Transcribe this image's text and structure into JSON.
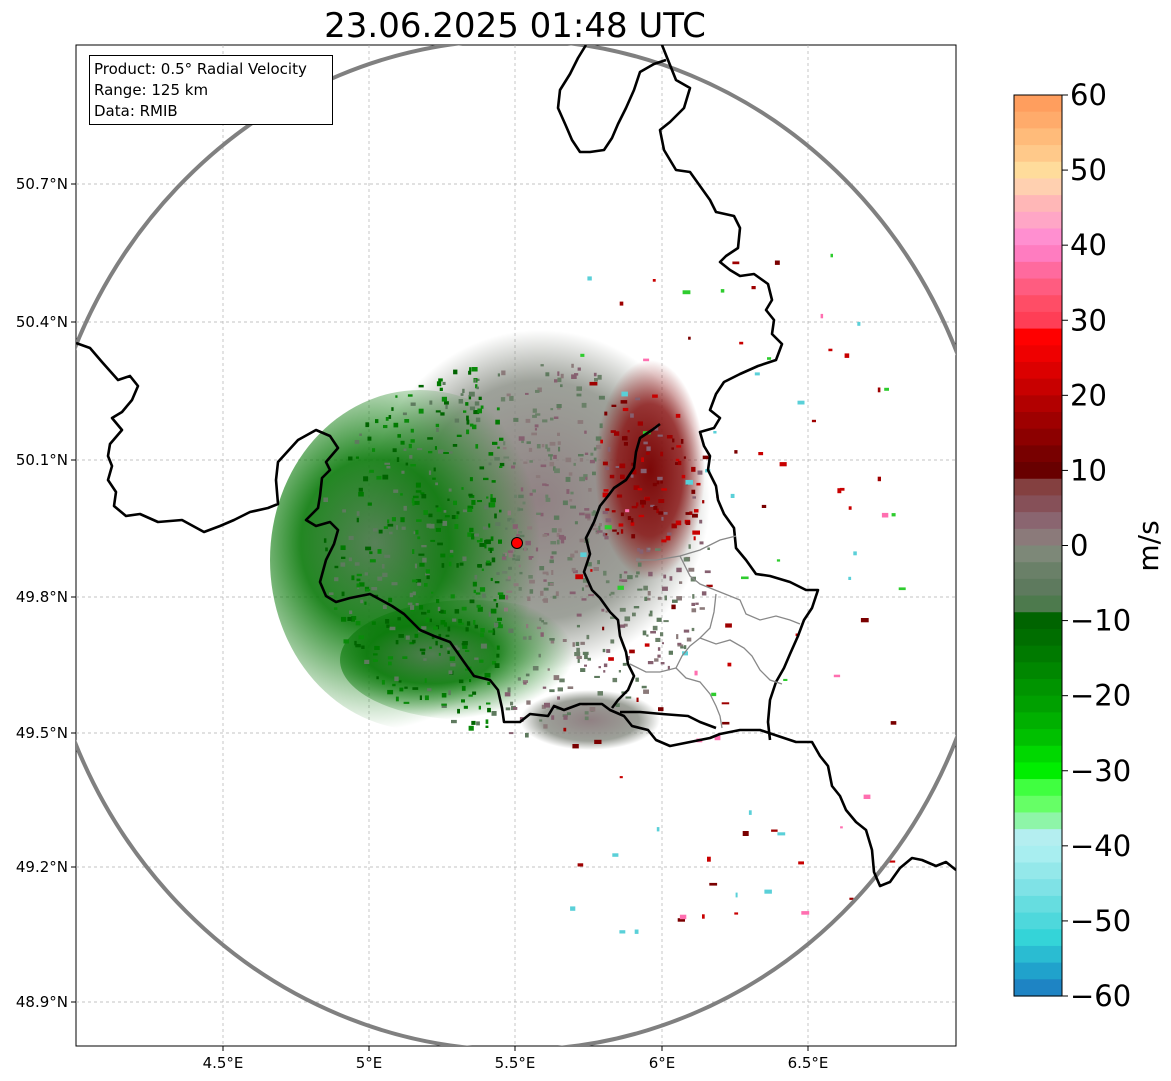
{
  "title": "23.06.2025 01:48 UTC",
  "info": {
    "product": "Product: 0.5° Radial Velocity",
    "range": "Range: 125 km",
    "source": "Data: RMIB"
  },
  "map": {
    "lon_ticks": [
      "4.5°E",
      "5°E",
      "5.5°E",
      "6°E",
      "6.5°E"
    ],
    "lat_ticks": [
      "50.7°N",
      "50.4°N",
      "50.1°N",
      "49.8°N",
      "49.5°N",
      "49.2°N",
      "48.9°N"
    ],
    "radar_site": {
      "lon": 5.5,
      "lat": 49.91
    },
    "range_km": 125,
    "range_ring_color": "#808080",
    "site_marker_color": "#ff0000",
    "border_color": "#000000",
    "subdivision_color": "#888888"
  },
  "colorbar": {
    "label": "m/s",
    "min": -60,
    "max": 60,
    "tick_labels": [
      "60",
      "50",
      "40",
      "30",
      "20",
      "10",
      "0",
      "−10",
      "−20",
      "−30",
      "−40",
      "−50",
      "−60"
    ],
    "colors_top_to_bottom": [
      "#ff9e5e",
      "#ffab6b",
      "#ffbb7a",
      "#ffc98a",
      "#ffdc9b",
      "#ffd0b0",
      "#ffb7b7",
      "#ffa6c6",
      "#ff8fd0",
      "#ff7cc0",
      "#ff6a9e",
      "#ff5c80",
      "#ff4d66",
      "#ff3e56",
      "#ff0000",
      "#ef0000",
      "#dc0000",
      "#c80000",
      "#b20000",
      "#9e0000",
      "#8c0000",
      "#780000",
      "#680000",
      "#844040",
      "#865058",
      "#8a6570",
      "#8b7a7a",
      "#7d8878",
      "#6a8068",
      "#5e7a5e",
      "#4d7a4d",
      "#006400",
      "#006e00",
      "#007a00",
      "#008700",
      "#009400",
      "#00a000",
      "#00b000",
      "#00c000",
      "#00d800",
      "#00ee00",
      "#40ff40",
      "#66ff66",
      "#8ef5a8",
      "#b4eef0",
      "#a8eef0",
      "#94e8ea",
      "#7fe2e6",
      "#66dde0",
      "#4ed8dc",
      "#34d4d8",
      "#2abcd2",
      "#20a2cc",
      "#1e84c4"
    ]
  }
}
